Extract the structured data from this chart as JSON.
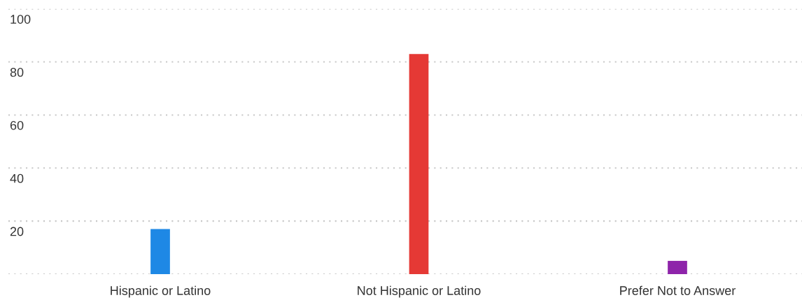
{
  "chart_data": {
    "type": "bar",
    "categories": [
      "Hispanic or Latino",
      "Not Hispanic or Latino",
      "Prefer Not to Answer"
    ],
    "values": [
      17,
      83,
      5
    ],
    "colors": [
      "#1e88e5",
      "#e53935",
      "#8e24aa"
    ],
    "ylim": [
      0,
      100
    ],
    "yticks": [
      {
        "value": 0,
        "label": null
      },
      20,
      40,
      60,
      80,
      100
    ],
    "grid": "y"
  }
}
